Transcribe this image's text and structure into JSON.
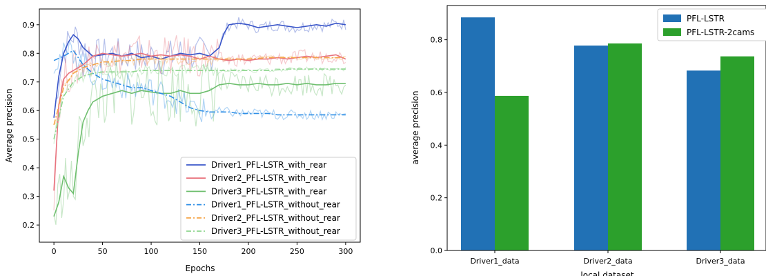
{
  "chart_data": [
    {
      "type": "line",
      "title": "",
      "xlabel": "Epochs",
      "ylabel": "Average precision",
      "xlim": [
        -15,
        315
      ],
      "ylim": [
        0.14,
        0.955
      ],
      "xticks": [
        0,
        50,
        100,
        150,
        200,
        250,
        300
      ],
      "yticks": [
        0.2,
        0.3,
        0.4,
        0.5,
        0.6,
        0.7,
        0.8,
        0.9
      ],
      "grid": false,
      "legend_position": "lower-right",
      "series": [
        {
          "name": "Driver1_PFL-LSTR_with_rear",
          "color": "#3a56c9",
          "style": "solid",
          "x": [
            0,
            5,
            10,
            15,
            20,
            25,
            30,
            40,
            50,
            60,
            70,
            80,
            90,
            100,
            110,
            120,
            130,
            140,
            150,
            160,
            170,
            175,
            180,
            190,
            200,
            210,
            220,
            230,
            240,
            250,
            260,
            270,
            280,
            290,
            300
          ],
          "y": [
            0.575,
            0.72,
            0.8,
            0.84,
            0.865,
            0.85,
            0.82,
            0.79,
            0.795,
            0.8,
            0.79,
            0.8,
            0.785,
            0.79,
            0.78,
            0.79,
            0.8,
            0.795,
            0.8,
            0.79,
            0.82,
            0.87,
            0.9,
            0.905,
            0.9,
            0.89,
            0.895,
            0.9,
            0.895,
            0.89,
            0.895,
            0.9,
            0.895,
            0.905,
            0.9
          ]
        },
        {
          "name": "Driver2_PFL-LSTR_with_rear",
          "color": "#e8737e",
          "style": "solid",
          "x": [
            0,
            5,
            10,
            15,
            20,
            30,
            40,
            50,
            60,
            70,
            80,
            90,
            100,
            110,
            120,
            130,
            140,
            150,
            160,
            170,
            180,
            190,
            200,
            210,
            220,
            230,
            240,
            250,
            260,
            270,
            280,
            290,
            300
          ],
          "y": [
            0.32,
            0.62,
            0.71,
            0.73,
            0.74,
            0.76,
            0.79,
            0.8,
            0.795,
            0.79,
            0.795,
            0.8,
            0.79,
            0.795,
            0.79,
            0.795,
            0.79,
            0.78,
            0.79,
            0.78,
            0.775,
            0.78,
            0.775,
            0.78,
            0.78,
            0.785,
            0.78,
            0.785,
            0.79,
            0.785,
            0.79,
            0.795,
            0.78
          ]
        },
        {
          "name": "Driver3_PFL-LSTR_with_rear",
          "color": "#6fbf6f",
          "style": "solid",
          "x": [
            0,
            5,
            10,
            15,
            20,
            25,
            30,
            35,
            40,
            50,
            60,
            70,
            80,
            90,
            100,
            110,
            120,
            130,
            140,
            150,
            160,
            170,
            180,
            190,
            200,
            210,
            220,
            230,
            240,
            250,
            260,
            270,
            280,
            290,
            300
          ],
          "y": [
            0.23,
            0.28,
            0.37,
            0.33,
            0.31,
            0.45,
            0.56,
            0.6,
            0.63,
            0.65,
            0.66,
            0.67,
            0.66,
            0.67,
            0.665,
            0.66,
            0.66,
            0.67,
            0.66,
            0.66,
            0.67,
            0.69,
            0.695,
            0.69,
            0.69,
            0.695,
            0.69,
            0.69,
            0.695,
            0.69,
            0.695,
            0.69,
            0.69,
            0.695,
            0.695
          ]
        },
        {
          "name": "Driver1_PFL-LSTR_without_rear",
          "color": "#2f8fe6",
          "style": "dashdot",
          "x": [
            0,
            10,
            20,
            30,
            40,
            50,
            60,
            70,
            80,
            90,
            100,
            110,
            120,
            130,
            140,
            150,
            160,
            170,
            180,
            190,
            200,
            210,
            220,
            230,
            240,
            250,
            260,
            270,
            280,
            290,
            300
          ],
          "y": [
            0.775,
            0.79,
            0.81,
            0.76,
            0.73,
            0.71,
            0.7,
            0.69,
            0.68,
            0.68,
            0.67,
            0.66,
            0.65,
            0.63,
            0.61,
            0.6,
            0.595,
            0.595,
            0.595,
            0.59,
            0.59,
            0.59,
            0.59,
            0.585,
            0.585,
            0.585,
            0.585,
            0.585,
            0.585,
            0.585,
            0.585
          ]
        },
        {
          "name": "Driver2_PFL-LSTR_without_rear",
          "color": "#f5a64a",
          "style": "dashdot",
          "x": [
            0,
            10,
            20,
            30,
            40,
            50,
            60,
            70,
            80,
            90,
            100,
            120,
            140,
            160,
            180,
            200,
            220,
            240,
            260,
            280,
            300
          ],
          "y": [
            0.55,
            0.68,
            0.73,
            0.75,
            0.76,
            0.77,
            0.77,
            0.775,
            0.775,
            0.78,
            0.78,
            0.78,
            0.78,
            0.78,
            0.78,
            0.78,
            0.785,
            0.785,
            0.785,
            0.785,
            0.785
          ]
        },
        {
          "name": "Driver3_PFL-LSTR_without_rear",
          "color": "#8fd68f",
          "style": "dashdot",
          "x": [
            0,
            10,
            20,
            30,
            40,
            50,
            60,
            70,
            80,
            90,
            100,
            120,
            140,
            160,
            180,
            200,
            220,
            240,
            260,
            280,
            300
          ],
          "y": [
            0.5,
            0.65,
            0.7,
            0.72,
            0.73,
            0.735,
            0.735,
            0.735,
            0.735,
            0.74,
            0.74,
            0.74,
            0.74,
            0.74,
            0.74,
            0.74,
            0.74,
            0.745,
            0.745,
            0.745,
            0.745
          ]
        }
      ]
    },
    {
      "type": "bar",
      "title": "",
      "xlabel": "local dataset",
      "ylabel": "average precision",
      "ylim": [
        0,
        0.93
      ],
      "yticks": [
        0.0,
        0.2,
        0.4,
        0.6,
        0.8
      ],
      "grid": false,
      "legend_position": "top-right",
      "categories": [
        "Driver1_data",
        "Driver2_data",
        "Driver3_data"
      ],
      "series": [
        {
          "name": "PFL-LSTR",
          "color": "#2171b5",
          "values": [
            0.885,
            0.778,
            0.683
          ]
        },
        {
          "name": "PFL-LSTR-2cams",
          "color": "#2ca02c",
          "values": [
            0.587,
            0.786,
            0.737
          ]
        }
      ]
    }
  ]
}
